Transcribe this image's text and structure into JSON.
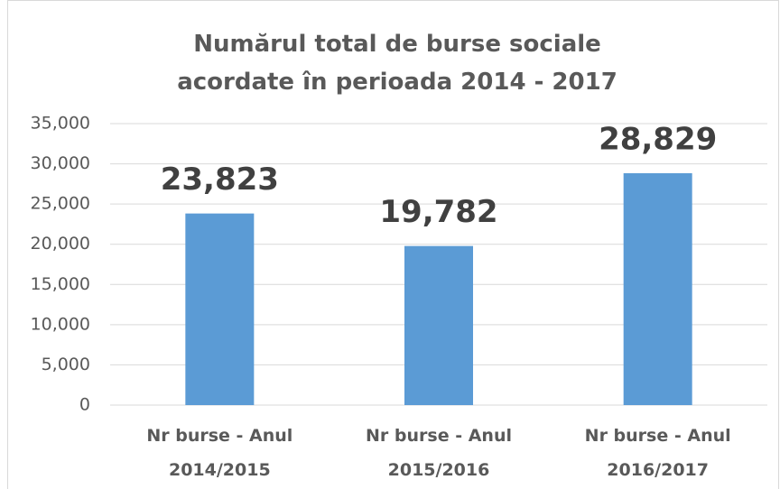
{
  "chart_data": {
    "type": "bar",
    "title": "Numărul total de burse sociale acordate în perioada 2014 - 2017",
    "categories": [
      "Nr burse - Anul 2014/2015",
      "Nr burse - Anul 2015/2016",
      "Nr burse - Anul 2016/2017"
    ],
    "values": [
      23823,
      19782,
      28829
    ],
    "value_labels": [
      "23,823",
      "19,782",
      "28,829"
    ],
    "color": "#5b9bd5",
    "ylim": [
      0,
      35000
    ],
    "yticks": [
      0,
      {
        "value": 5000,
        "label": "5,000"
      },
      {
        "value": 10000,
        "label": "10,000"
      },
      {
        "value": 15000,
        "label": "15,000"
      },
      {
        "value": 20000,
        "label": "20,000"
      },
      {
        "value": 25000,
        "label": "25,000"
      },
      {
        "value": 30000,
        "label": "30,000"
      },
      {
        "value": 35000,
        "label": "35,000"
      }
    ],
    "grid": true
  }
}
